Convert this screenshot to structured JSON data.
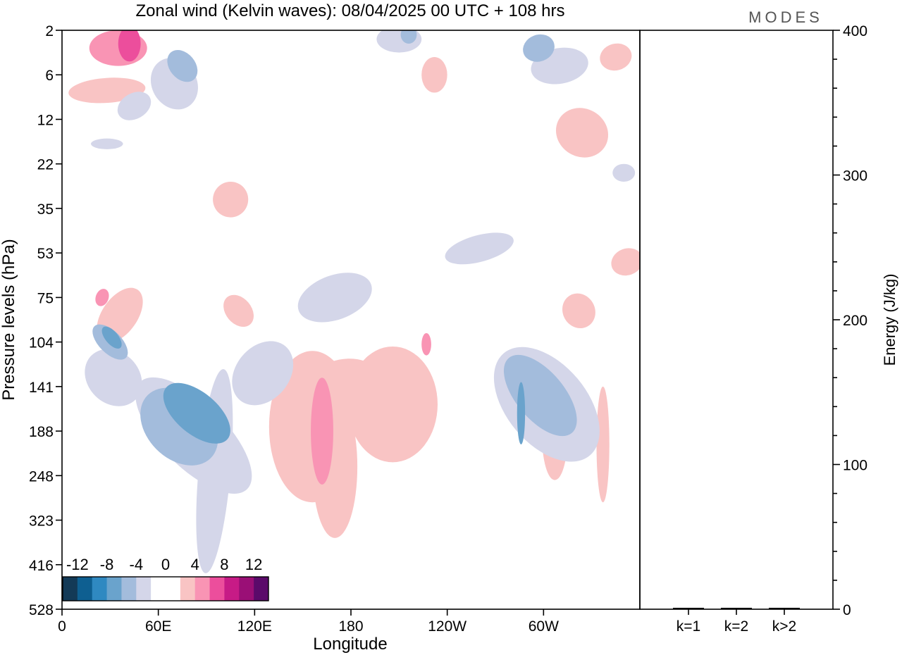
{
  "chart_data": {
    "type": "heatmap",
    "title": "Zonal wind (Kelvin waves):  08/04/2025  00 UTC  + 108 hrs",
    "logo": "MODES",
    "xlabel": "Longitude",
    "ylabel": "Pressure levels (hPa)",
    "y2label": "Energy (J/kg)",
    "x_range": [
      0,
      360
    ],
    "x_ticks": [
      {
        "lon": 0,
        "label": "0"
      },
      {
        "lon": 60,
        "label": "60E"
      },
      {
        "lon": 120,
        "label": "120E"
      },
      {
        "lon": 180,
        "label": "180"
      },
      {
        "lon": 240,
        "label": "120W"
      },
      {
        "lon": 300,
        "label": "60W"
      }
    ],
    "y_levels": [
      "2",
      "6",
      "12",
      "22",
      "35",
      "53",
      "75",
      "104",
      "141",
      "188",
      "248",
      "323",
      "416",
      "528"
    ],
    "energy_axis": {
      "range": [
        0,
        400
      ],
      "major_ticks": [
        0,
        100,
        200,
        300,
        400
      ],
      "minor_step": 20
    },
    "energy_bars": [
      {
        "label": "k=1",
        "value": 0.5
      },
      {
        "label": "k=2",
        "value": 0.5
      },
      {
        "label": "k>2",
        "value": 0.5
      }
    ],
    "colorbar": {
      "labels": [
        "-12",
        "-8",
        "-4",
        "0",
        "4",
        "8",
        "12"
      ],
      "colors": [
        "#133a57",
        "#0e5f91",
        "#2f89c1",
        "#6aa3cc",
        "#a3bcdc",
        "#d4d6e9",
        "#ffffff",
        "#ffffff",
        "#f9c4c4",
        "#f994b4",
        "#ec4e9c",
        "#c71b86",
        "#9a0f76",
        "#5b0a6a"
      ]
    },
    "contours": [
      {
        "level": 2,
        "color": "#f9c4c4",
        "shapes": [
          {
            "lon": 28,
            "lev": 1.35,
            "rlon": 24,
            "rlev": 0.28,
            "rot": -4
          },
          {
            "lon": 36,
            "lev": 6.4,
            "rlon": 11,
            "rlev": 0.7,
            "rot": 35
          },
          {
            "lon": 105,
            "lev": 3.8,
            "rlon": 11,
            "rlev": 0.4,
            "rot": 10
          },
          {
            "lon": 156,
            "lev": 8.9,
            "rlon": 27,
            "rlev": 1.7,
            "rot": 0
          },
          {
            "lon": 175,
            "lev": 8.2,
            "rlon": 28,
            "rlev": 0.8,
            "rot": -20
          },
          {
            "lon": 206,
            "lev": 8.4,
            "rlon": 28,
            "rlev": 1.3,
            "rot": 0
          },
          {
            "lon": 170,
            "lev": 9.8,
            "rlon": 14,
            "rlev": 1.6,
            "rot": 0
          },
          {
            "lon": 232,
            "lev": 1.0,
            "rlon": 8,
            "rlev": 0.4,
            "rot": 0
          },
          {
            "lon": 307,
            "lev": 9.1,
            "rlon": 8,
            "rlev": 1.0,
            "rot": 0
          },
          {
            "lon": 324,
            "lev": 2.3,
            "rlon": 15,
            "rlev": 0.6,
            "rot": -60
          },
          {
            "lon": 345,
            "lev": 0.6,
            "rlon": 10,
            "rlev": 0.3,
            "rot": -15
          },
          {
            "lon": 352,
            "lev": 5.2,
            "rlon": 10,
            "rlev": 0.3,
            "rot": -20
          },
          {
            "lon": 322,
            "lev": 6.3,
            "rlon": 10,
            "rlev": 0.4,
            "rot": -30
          },
          {
            "lon": 337,
            "lev": 9.3,
            "rlon": 4,
            "rlev": 1.3,
            "rot": 0
          },
          {
            "lon": 110,
            "lev": 6.3,
            "rlon": 8,
            "rlev": 0.4,
            "rot": -40
          }
        ]
      },
      {
        "level": 4,
        "color": "#f994b4",
        "shapes": [
          {
            "lon": 35,
            "lev": 0.4,
            "rlon": 18,
            "rlev": 0.4,
            "rot": 0
          },
          {
            "lon": 162,
            "lev": 9.0,
            "rlon": 7,
            "rlev": 1.2,
            "rot": 0
          },
          {
            "lon": 227,
            "lev": 7.05,
            "rlon": 3,
            "rlev": 0.25,
            "rot": 0
          },
          {
            "lon": 25,
            "lev": 6.0,
            "rlon": 4,
            "rlev": 0.2,
            "rot": 20
          }
        ]
      },
      {
        "level": 6,
        "color": "#ec4e9c",
        "shapes": [
          {
            "lon": 42,
            "lev": 0.3,
            "rlon": 7,
            "rlev": 0.4,
            "rot": 0
          }
        ]
      },
      {
        "level": -2,
        "color": "#d4d6e9",
        "shapes": [
          {
            "lon": 82,
            "lev": 9.1,
            "rlon": 20,
            "rlev": 1.7,
            "rot": -45
          },
          {
            "lon": 95,
            "lev": 9.9,
            "rlon": 10,
            "rlev": 2.3,
            "rot": 5
          },
          {
            "lon": 32,
            "lev": 7.8,
            "rlon": 16,
            "rlev": 0.7,
            "rot": -45
          },
          {
            "lon": 170,
            "lev": 6.0,
            "rlon": 24,
            "rlev": 0.5,
            "rot": -20
          },
          {
            "lon": 125,
            "lev": 7.7,
            "rlon": 22,
            "rlev": 0.6,
            "rot": -50
          },
          {
            "lon": 302,
            "lev": 8.4,
            "rlon": 25,
            "rlev": 1.5,
            "rot": -40
          },
          {
            "lon": 260,
            "lev": 4.9,
            "rlon": 22,
            "rlev": 0.3,
            "rot": -15
          },
          {
            "lon": 70,
            "lev": 1.2,
            "rlon": 14,
            "rlev": 0.6,
            "rot": -30
          },
          {
            "lon": 310,
            "lev": 0.8,
            "rlon": 18,
            "rlev": 0.4,
            "rot": -10
          },
          {
            "lon": 210,
            "lev": 0.2,
            "rlon": 14,
            "rlev": 0.3,
            "rot": 0
          },
          {
            "lon": 45,
            "lev": 1.7,
            "rlon": 8,
            "rlev": 0.4,
            "rot": 60
          },
          {
            "lon": 28,
            "lev": 2.55,
            "rlon": 10,
            "rlev": 0.12,
            "rot": 0
          },
          {
            "lon": 350,
            "lev": 3.2,
            "rlon": 7,
            "rlev": 0.2,
            "rot": 0
          }
        ]
      },
      {
        "level": -4,
        "color": "#a3bcdc",
        "shapes": [
          {
            "lon": 73,
            "lev": 8.9,
            "rlon": 20,
            "rlev": 1.0,
            "rot": -45
          },
          {
            "lon": 30,
            "lev": 7.0,
            "rlon": 7,
            "rlev": 0.5,
            "rot": -45
          },
          {
            "lon": 298,
            "lev": 8.2,
            "rlon": 15,
            "rlev": 1.1,
            "rot": -40
          },
          {
            "lon": 75,
            "lev": 0.8,
            "rlon": 8,
            "rlev": 0.4,
            "rot": -40
          },
          {
            "lon": 297,
            "lev": 0.4,
            "rlon": 10,
            "rlev": 0.3,
            "rot": -20
          },
          {
            "lon": 216,
            "lev": 0.1,
            "rlon": 5,
            "rlev": 0.2,
            "rot": 0
          }
        ]
      },
      {
        "level": -6,
        "color": "#6aa3cc",
        "shapes": [
          {
            "lon": 84,
            "lev": 8.6,
            "rlon": 13,
            "rlev": 0.9,
            "rot": -50
          },
          {
            "lon": 31,
            "lev": 6.9,
            "rlon": 4,
            "rlev": 0.3,
            "rot": -40
          },
          {
            "lon": 286,
            "lev": 8.6,
            "rlon": 2.5,
            "rlev": 0.7,
            "rot": 0
          }
        ]
      }
    ]
  }
}
